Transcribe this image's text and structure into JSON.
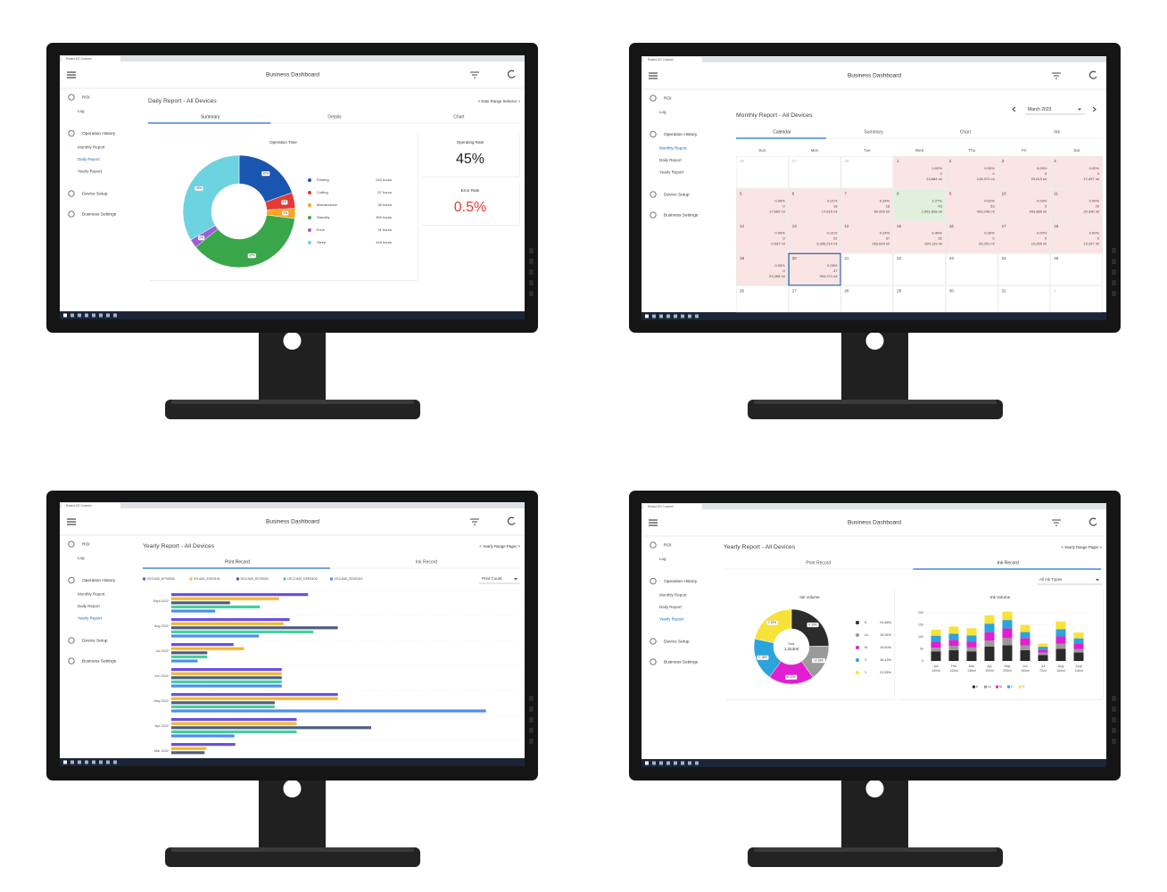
{
  "screens": [
    {
      "tab_title": "Roland DG Connect",
      "app_title": "Business Dashboard",
      "sidebar": [
        {
          "label": "ROI",
          "items": [
            {
              "label": "Log"
            }
          ]
        },
        {
          "label": "Operation History",
          "items": [
            {
              "label": "Monthly Report"
            },
            {
              "label": "Daily Report",
              "active": true
            },
            {
              "label": "Yearly Report"
            }
          ]
        },
        {
          "label": "Device Setup"
        },
        {
          "label": "Business Settings"
        }
      ],
      "report_title": "Daily Report - All Devices",
      "range_selector": "< Date Range Selector >",
      "tabs": [
        {
          "label": "Summary",
          "active": true
        },
        {
          "label": "Details"
        },
        {
          "label": "Chart"
        }
      ],
      "chart_data": {
        "type": "donut",
        "title": "Operation Time",
        "categories": [
          "Printing",
          "Cutting",
          "Maintenance",
          "Standby",
          "Error",
          "Sleep"
        ],
        "values": [
          243,
          57,
          36,
          459,
          31,
          416
        ],
        "value_labels": [
          "243 hours",
          "57 hours",
          "36 hours",
          "459 hours",
          "31 hours",
          "416 hours"
        ],
        "slice_labels": [
          "20%",
          "5%",
          "3%",
          "37%",
          "2%",
          "33%"
        ],
        "colors": [
          "#1a56b0",
          "#e53935",
          "#f5a623",
          "#3aa64a",
          "#9c5ed6",
          "#6dd3e0"
        ]
      },
      "cards": [
        {
          "label": "Operating Rate",
          "value": "45%",
          "color": "#222222"
        },
        {
          "label": "Error Rate",
          "value": "0.5%",
          "color": "#e53935"
        }
      ]
    },
    {
      "tab_title": "Roland DG Connect",
      "app_title": "Business Dashboard",
      "sidebar": [
        {
          "label": "ROI",
          "items": [
            {
              "label": "Log"
            }
          ]
        },
        {
          "label": "Operation History",
          "items": [
            {
              "label": "Monthly Report",
              "active": true
            },
            {
              "label": "Daily Report"
            },
            {
              "label": "Yearly Report"
            }
          ]
        },
        {
          "label": "Device Setup"
        },
        {
          "label": "Business Settings"
        }
      ],
      "report_title": "Monthly Report - All Devices",
      "month": "March 2023",
      "tabs": [
        {
          "label": "Calendar",
          "active": true
        },
        {
          "label": "Summary"
        },
        {
          "label": "Chart"
        },
        {
          "label": "Ink"
        }
      ],
      "calendar": {
        "weekdays": [
          "Sun",
          "Mon",
          "Tue",
          "Wed",
          "Thu",
          "Fri",
          "Sat"
        ],
        "days": [
          {
            "day": "26",
            "muted": true
          },
          {
            "day": "27",
            "muted": true
          },
          {
            "day": "28",
            "muted": true
          },
          {
            "day": "1",
            "rate": "0.00%",
            "count": "0",
            "ink": "23,684 ml",
            "color": "#fbe4e4"
          },
          {
            "day": "2",
            "rate": "0.00%",
            "count": "0",
            "ink": "128,372 ml",
            "color": "#fbe4e4"
          },
          {
            "day": "3",
            "rate": "0.09%",
            "count": "5",
            "ink": "23,619 ml",
            "color": "#fbe4e4"
          },
          {
            "day": "4",
            "rate": "0.00%",
            "count": "0",
            "ink": "17,497 ml",
            "color": "#fbe4e4"
          },
          {
            "day": "5",
            "rate": "0.00%",
            "count": "0",
            "ink": "17,569 ml",
            "color": "#fbe4e4"
          },
          {
            "day": "6",
            "rate": "0.21%",
            "count": "18",
            "ink": "17,615 ml",
            "color": "#fbe4e4"
          },
          {
            "day": "7",
            "rate": "0.34%",
            "count": "18",
            "ink": "54,426 ml",
            "color": "#fbe4e4"
          },
          {
            "day": "8",
            "rate": "2.27%",
            "count": "43",
            "ink": "1,561,528 ml",
            "color": "#e3efdd"
          },
          {
            "day": "9",
            "rate": "0.62%",
            "count": "53",
            "ink": "493,248 ml",
            "color": "#fbe4e4"
          },
          {
            "day": "10",
            "rate": "0.03%",
            "count": "2",
            "ink": "493,885 ml",
            "color": "#fbe4e4"
          },
          {
            "day": "11",
            "rate": "0.00%",
            "count": "20",
            "ink": "20,390 ml",
            "color": "#fbe4e4"
          },
          {
            "day": "12",
            "rate": "0.00%",
            "count": "0",
            "ink": "9,937 ml",
            "color": "#fbe4e4"
          },
          {
            "day": "13",
            "rate": "0.31%",
            "count": "22",
            "ink": "3,336,214 ml",
            "color": "#fbe4e4"
          },
          {
            "day": "14",
            "rate": "0.24%",
            "count": "37",
            "ink": "263,624 ml",
            "color": "#fbe4e4"
          },
          {
            "day": "15",
            "rate": "0.40%",
            "count": "32",
            "ink": "824,119 ml",
            "color": "#fbe4e4"
          },
          {
            "day": "16",
            "rate": "0.00%",
            "count": "0",
            "ink": "29,251 ml",
            "color": "#fbe4e4"
          },
          {
            "day": "17",
            "rate": "0.00%",
            "count": "0",
            "ink": "19,265 ml",
            "color": "#fbe4e4"
          },
          {
            "day": "18",
            "rate": "0.00%",
            "count": "0",
            "ink": "19,267 ml",
            "color": "#fbe4e4"
          },
          {
            "day": "19",
            "rate": "0.00%",
            "count": "0",
            "ink": "23,268 ml",
            "color": "#fbe4e4"
          },
          {
            "day": "20",
            "rate": "0.28%",
            "count": "37",
            "ink": "994,371 ml",
            "color": "#fbe4e4",
            "selected": true
          },
          {
            "day": "21"
          },
          {
            "day": "22"
          },
          {
            "day": "23"
          },
          {
            "day": "24"
          },
          {
            "day": "25"
          },
          {
            "day": "26"
          },
          {
            "day": "27"
          },
          {
            "day": "28"
          },
          {
            "day": "29"
          },
          {
            "day": "30"
          },
          {
            "day": "31"
          },
          {
            "day": "1",
            "muted": true
          }
        ]
      }
    },
    {
      "tab_title": "Roland DG Connect",
      "app_title": "Business Dashboard",
      "sidebar": [
        {
          "label": "ROI",
          "items": [
            {
              "label": "Log"
            }
          ]
        },
        {
          "label": "Operation History",
          "items": [
            {
              "label": "Monthly Report"
            },
            {
              "label": "Daily Report"
            },
            {
              "label": "Yearly Report",
              "active": true
            }
          ]
        },
        {
          "label": "Device Setup"
        },
        {
          "label": "Business Settings"
        }
      ],
      "report_title": "Yearly Report - All Devices",
      "range_selector": "< Yearly Range Pager >",
      "tabs": [
        {
          "label": "Print Record",
          "active": true
        },
        {
          "label": "Ink Record"
        }
      ],
      "dropdown": "Print Count",
      "chart_data": {
        "type": "hbar",
        "categories": [
          "Sept 2022",
          "Aug 2022",
          "Jul 2022",
          "Jun 2022",
          "May 2022",
          "Apr 2022",
          "Mar 2022"
        ],
        "xlim": [
          0,
          400
        ],
        "series": [
          {
            "name": "VG3-640_KFS0004",
            "color": "#6b4fe0",
            "values": [
              156,
              135,
              71,
              126,
              190,
              143,
              73
            ]
          },
          {
            "name": "VG-640_ZOK0101",
            "color": "#f7b52c",
            "values": [
              123,
              128,
              83,
              126,
              190,
              143,
              40
            ]
          },
          {
            "name": "SG3-540_KFS0003",
            "color": "#4f5d7e",
            "values": [
              67,
              190,
              41,
              126,
              118,
              228,
              38
            ]
          },
          {
            "name": "LEC2-640_KER0100",
            "color": "#45d0a0",
            "values": [
              101,
              162,
              41,
              126,
              118,
              143,
              null
            ]
          },
          {
            "name": "VG2-640_ZDV0104",
            "color": "#4b8df0",
            "values": [
              50,
              100,
              30,
              126,
              359,
              72,
              null
            ]
          }
        ]
      }
    },
    {
      "tab_title": "Roland DG Connect",
      "app_title": "Business Dashboard",
      "sidebar": [
        {
          "label": "ROI",
          "items": [
            {
              "label": "Log"
            }
          ]
        },
        {
          "label": "Operation History",
          "items": [
            {
              "label": "Monthly Report"
            },
            {
              "label": "Daily Report"
            },
            {
              "label": "Yearly Report",
              "active": true
            }
          ]
        },
        {
          "label": "Device Setup"
        },
        {
          "label": "Business Settings"
        }
      ],
      "report_title": "Yearly Report - All Devices",
      "range_selector": "< Yearly Range Pager >",
      "tabs": [
        {
          "label": "Print Record"
        },
        {
          "label": "Ink Record",
          "active": true
        }
      ],
      "dropdown": "All Ink Types",
      "chart_data": [
        {
          "type": "donut",
          "title": "Ink Volume",
          "center_label": "Total:",
          "center_value": "1,313ml",
          "categories": [
            "K",
            "Lk",
            "M",
            "C",
            "Y"
          ],
          "values": [
            24.68,
            15.54,
            19.6,
            18.43,
            21.55
          ],
          "value_labels": [
            "24.68%",
            "15.54%",
            "19.60%",
            "18.43%",
            "21.55%"
          ],
          "slice_labels": [
            "K 25%",
            "Lk 16%",
            "M 20%",
            "C 18%",
            "Y 22%"
          ],
          "colors": [
            "#2b2b2b",
            "#9a9a9a",
            "#e11fd0",
            "#2ba3dc",
            "#f7e23a"
          ]
        },
        {
          "type": "stacked_bar",
          "title": "Ink Volume",
          "categories": [
            "Jan",
            "Feb",
            "Mar",
            "Apr",
            "May",
            "Jun",
            "Jul",
            "Aug",
            "Sept"
          ],
          "category_totals": [
            "130ml",
            "143ml",
            "136ml",
            "190ml",
            "205ml",
            "150ml",
            "72ml",
            "164ml",
            "118ml"
          ],
          "ylim": [
            0,
            200
          ],
          "yticks": [
            0,
            50,
            100,
            150,
            200
          ],
          "series": [
            {
              "name": "K",
              "color": "#2b2b2b",
              "values": [
                40,
                45,
                40,
                60,
                65,
                45,
                25,
                50,
                35
              ]
            },
            {
              "name": "Lk",
              "color": "#9a9a9a",
              "values": [
                15,
                18,
                16,
                25,
                30,
                20,
                10,
                22,
                15
              ]
            },
            {
              "name": "M",
              "color": "#e11fd0",
              "values": [
                25,
                25,
                25,
                35,
                40,
                30,
                12,
                30,
                22
              ]
            },
            {
              "name": "C",
              "color": "#2ba3dc",
              "values": [
                25,
                25,
                25,
                35,
                35,
                25,
                12,
                30,
                22
              ]
            },
            {
              "name": "Y",
              "color": "#f7e23a",
              "values": [
                25,
                30,
                30,
                35,
                35,
                30,
                13,
                32,
                24
              ]
            }
          ]
        }
      ]
    }
  ]
}
